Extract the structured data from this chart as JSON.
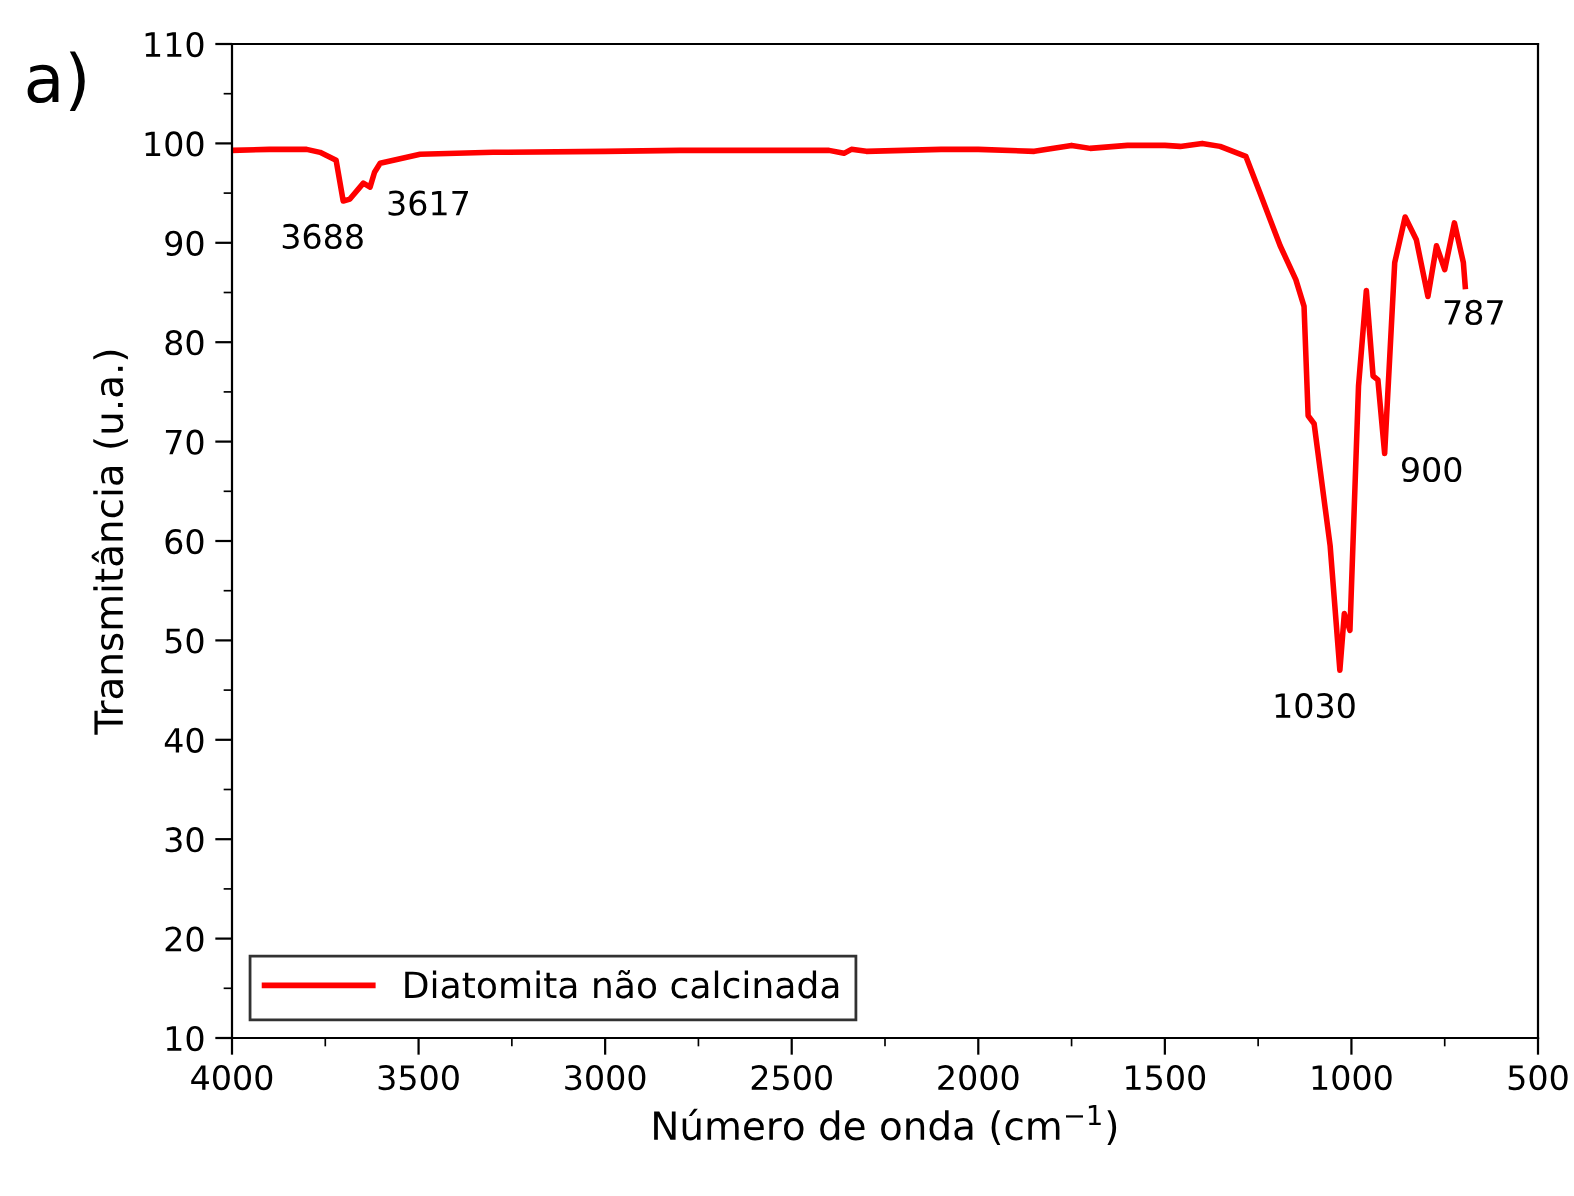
{
  "chart_data": {
    "type": "line",
    "title": "a)",
    "xlabel": "Número de onda (cm$^{−1}$)",
    "ylabel": "Transmitância (u.a.)",
    "x": [
      4000,
      3900,
      3800,
      3764,
      3721,
      3702,
      3684,
      3648,
      3630,
      3618,
      3603,
      3496,
      3300,
      3000,
      2800,
      2600,
      2400,
      2360,
      2340,
      2300,
      2100,
      2000,
      1850,
      1750,
      1700,
      1600,
      1500,
      1459,
      1400,
      1352,
      1283,
      1245,
      1191,
      1149,
      1127,
      1116,
      1100,
      1057,
      1031,
      1019,
      1004,
      981,
      960,
      942,
      929,
      911,
      884,
      856,
      826,
      795,
      772,
      750,
      724,
      700,
      695
    ],
    "series": [
      {
        "name": "Diatomita não calcinada",
        "color": "#ff0000",
        "values": [
          99.3,
          99.4,
          99.4,
          99.1,
          98.3,
          94.2,
          94.4,
          96,
          95.6,
          97.1,
          98,
          98.9,
          99.1,
          99.2,
          99.3,
          99.3,
          99.3,
          99.0,
          99.4,
          99.2,
          99.4,
          99.4,
          99.2,
          99.8,
          99.5,
          99.8,
          99.8,
          99.7,
          100,
          99.7,
          98.7,
          95,
          89.7,
          86.3,
          83.6,
          72.6,
          71.8,
          59.5,
          47,
          52.7,
          51,
          75.6,
          85.2,
          76.6,
          76.2,
          68.8,
          88,
          92.6,
          90.3,
          84.6,
          89.7,
          87.3,
          92,
          88,
          85.6
        ]
      }
    ],
    "annotations": [
      {
        "text": "3688",
        "x": 3688,
        "y": 94.2
      },
      {
        "text": "3617",
        "x": 3617,
        "y": 95.6
      },
      {
        "text": "1030",
        "x": 1030,
        "y": 47
      },
      {
        "text": "900",
        "x": 900,
        "y": 68.8
      },
      {
        "text": "787",
        "x": 787,
        "y": 84.6
      }
    ],
    "xlim": [
      4000,
      500
    ],
    "ylim": [
      10,
      110
    ],
    "xticks": [
      4000,
      3500,
      3000,
      2500,
      2000,
      1500,
      1000,
      500
    ],
    "yticks": [
      10,
      20,
      30,
      40,
      50,
      60,
      70,
      80,
      90,
      100,
      110
    ],
    "grid": false,
    "legend": "bottom left",
    "marker": "none",
    "line_style": "solid"
  }
}
